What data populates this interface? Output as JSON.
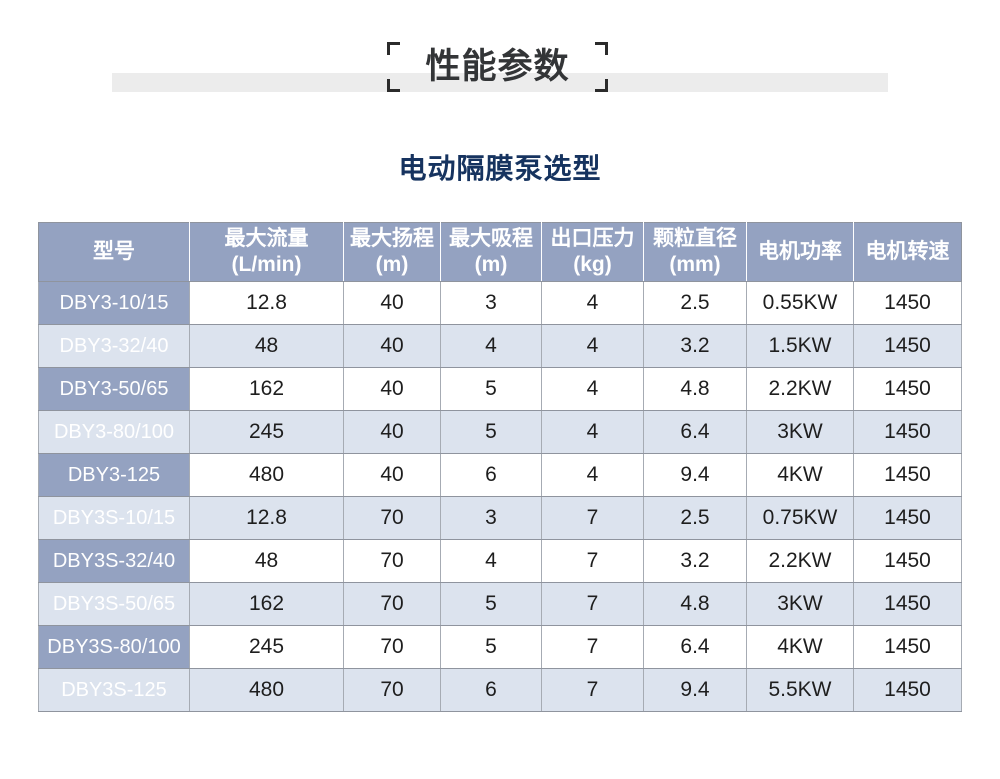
{
  "page": {
    "section_title": "性能参数",
    "subtitle": "电动隔膜泵选型"
  },
  "colors": {
    "header_bg": "#94a2c1",
    "alt_row_bg": "#dce3ee",
    "row_bg": "#ffffff",
    "header_text": "#ffffff",
    "body_text": "#1e1e1e",
    "title_text": "#333537",
    "subtitle_text": "#16335f",
    "band_bg": "#ececec",
    "border_h": "#8f949e",
    "border_v": "#a6abb3"
  },
  "table": {
    "headers": [
      {
        "line1": "型号",
        "line2": ""
      },
      {
        "line1": "最大流量",
        "line2": "(L/min)"
      },
      {
        "line1": "最大扬程",
        "line2": "(m)"
      },
      {
        "line1": "最大吸程",
        "line2": "(m)"
      },
      {
        "line1": "出口压力",
        "line2": "(kg)"
      },
      {
        "line1": "颗粒直径",
        "line2": "(mm)"
      },
      {
        "line1": "电机功率",
        "line2": ""
      },
      {
        "line1": "电机转速",
        "line2": ""
      }
    ],
    "rows": [
      {
        "model": "DBY3-10/15",
        "values": [
          "12.8",
          "40",
          "3",
          "4",
          "2.5",
          "0.55KW",
          "1450"
        ]
      },
      {
        "model": "DBY3-32/40",
        "values": [
          "48",
          "40",
          "4",
          "4",
          "3.2",
          "1.5KW",
          "1450"
        ]
      },
      {
        "model": "DBY3-50/65",
        "values": [
          "162",
          "40",
          "5",
          "4",
          "4.8",
          "2.2KW",
          "1450"
        ]
      },
      {
        "model": "DBY3-80/100",
        "values": [
          "245",
          "40",
          "5",
          "4",
          "6.4",
          "3KW",
          "1450"
        ]
      },
      {
        "model": "DBY3-125",
        "values": [
          "480",
          "40",
          "6",
          "4",
          "9.4",
          "4KW",
          "1450"
        ]
      },
      {
        "model": "DBY3S-10/15",
        "values": [
          "12.8",
          "70",
          "3",
          "7",
          "2.5",
          "0.75KW",
          "1450"
        ]
      },
      {
        "model": "DBY3S-32/40",
        "values": [
          "48",
          "70",
          "4",
          "7",
          "3.2",
          "2.2KW",
          "1450"
        ]
      },
      {
        "model": "DBY3S-50/65",
        "values": [
          "162",
          "70",
          "5",
          "7",
          "4.8",
          "3KW",
          "1450"
        ]
      },
      {
        "model": "DBY3S-80/100",
        "values": [
          "245",
          "70",
          "5",
          "7",
          "6.4",
          "4KW",
          "1450"
        ]
      },
      {
        "model": "DBY3S-125",
        "values": [
          "480",
          "70",
          "6",
          "7",
          "9.4",
          "5.5KW",
          "1450"
        ]
      }
    ]
  }
}
